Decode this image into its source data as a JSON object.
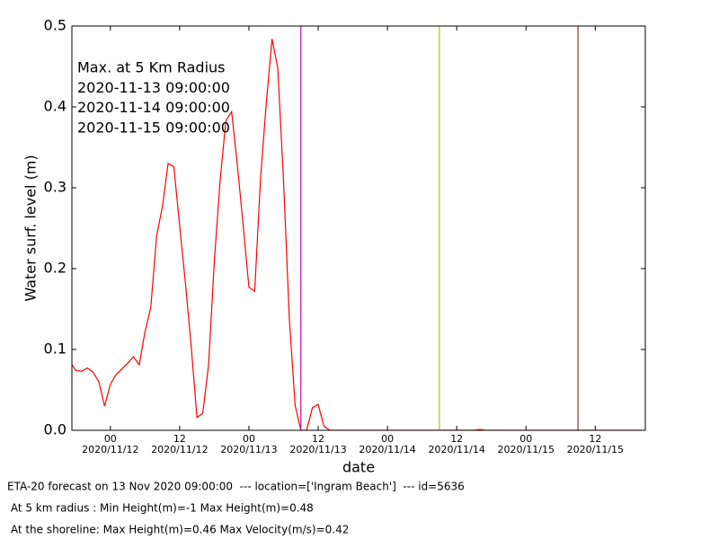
{
  "chart_data": {
    "type": "line",
    "xlabel": "date",
    "ylabel": "Water surf. level (m)",
    "x": [
      "2020-11-11 17:00",
      "2020-11-11 18:00",
      "2020-11-11 19:00",
      "2020-11-11 20:00",
      "2020-11-11 21:00",
      "2020-11-11 22:00",
      "2020-11-11 23:00",
      "2020-11-12 00:00",
      "2020-11-12 01:00",
      "2020-11-12 02:00",
      "2020-11-12 03:00",
      "2020-11-12 04:00",
      "2020-11-12 05:00",
      "2020-11-12 06:00",
      "2020-11-12 07:00",
      "2020-11-12 08:00",
      "2020-11-12 09:00",
      "2020-11-12 10:00",
      "2020-11-12 11:00",
      "2020-11-12 12:00",
      "2020-11-12 13:00",
      "2020-11-12 14:00",
      "2020-11-12 15:00",
      "2020-11-12 16:00",
      "2020-11-12 17:00",
      "2020-11-12 18:00",
      "2020-11-12 19:00",
      "2020-11-12 20:00",
      "2020-11-12 21:00",
      "2020-11-12 22:00",
      "2020-11-12 23:00",
      "2020-11-13 00:00",
      "2020-11-13 01:00",
      "2020-11-13 02:00",
      "2020-11-13 03:00",
      "2020-11-13 04:00",
      "2020-11-13 05:00",
      "2020-11-13 06:00",
      "2020-11-13 07:00",
      "2020-11-13 08:00",
      "2020-11-13 09:00",
      "2020-11-13 10:00",
      "2020-11-13 11:00",
      "2020-11-13 12:00",
      "2020-11-13 13:00",
      "2020-11-13 14:00",
      "2020-11-13 20:00",
      "2020-11-14 02:00",
      "2020-11-14 08:00",
      "2020-11-14 14:00",
      "2020-11-14 15:00",
      "2020-11-14 16:00",
      "2020-11-14 17:00",
      "2020-11-15 00:00",
      "2020-11-15 08:00",
      "2020-11-15 16:00",
      "2020-11-15 20:00"
    ],
    "series": [
      {
        "name": "Max. at 5 Km Radius",
        "color": "#ff0000",
        "values": [
          0.085,
          0.074,
          0.073,
          0.077,
          0.072,
          0.06,
          0.03,
          0.057,
          0.069,
          0.076,
          0.083,
          0.091,
          0.081,
          0.122,
          0.152,
          0.24,
          0.276,
          0.33,
          0.326,
          0.253,
          0.182,
          0.104,
          0.016,
          0.021,
          0.08,
          0.208,
          0.308,
          0.383,
          0.394,
          0.328,
          0.254,
          0.177,
          0.172,
          0.31,
          0.404,
          0.484,
          0.448,
          0.308,
          0.138,
          0.031,
          0,
          0,
          0.028,
          0.032,
          0.005,
          0,
          0,
          0,
          0,
          0,
          0,
          0.001,
          0,
          0,
          0,
          0,
          0
        ]
      }
    ],
    "vlines": [
      {
        "name": "2020-11-13 09:00:00",
        "x": "2020-11-13 09:00",
        "color": "#bf00bf"
      },
      {
        "name": "2020-11-14 09:00:00",
        "x": "2020-11-14 09:00",
        "color": "#bfbf00"
      },
      {
        "name": "2020-11-15 09:00:00",
        "x": "2020-11-15 09:00",
        "color": "#a52a2a"
      }
    ],
    "xlim": [
      "2020-11-11 17:20",
      "2020-11-15 20:40"
    ],
    "xticks": [
      {
        "value": "2020-11-12 00:00",
        "label": "00",
        "date": "2020/11/12"
      },
      {
        "value": "2020-11-12 12:00",
        "label": "12",
        "date": "2020/11/12"
      },
      {
        "value": "2020-11-13 00:00",
        "label": "00",
        "date": "2020/11/13"
      },
      {
        "value": "2020-11-13 12:00",
        "label": "12",
        "date": "2020/11/13"
      },
      {
        "value": "2020-11-14 00:00",
        "label": "00",
        "date": "2020/11/14"
      },
      {
        "value": "2020-11-14 12:00",
        "label": "12",
        "date": "2020/11/14"
      },
      {
        "value": "2020-11-15 00:00",
        "label": "00",
        "date": "2020/11/15"
      },
      {
        "value": "2020-11-15 12:00",
        "label": "12",
        "date": "2020/11/15"
      }
    ],
    "ylim": [
      0,
      0.5
    ],
    "yticks": [
      {
        "value": 0,
        "label": "0.0"
      },
      0.1,
      0.2,
      0.3,
      0.4,
      0.5
    ],
    "legend": "upper left"
  },
  "footer": [
    "ETA-20 forecast on 13 Nov 2020 09:00:00  --- location=['Ingram Beach']  --- id=5636",
    " At 5 km radius : Min Height(m)=-1 Max Height(m)=0.48",
    " At the shoreline: Max Height(m)=0.46 Max Velocity(m/s)=0.42"
  ]
}
